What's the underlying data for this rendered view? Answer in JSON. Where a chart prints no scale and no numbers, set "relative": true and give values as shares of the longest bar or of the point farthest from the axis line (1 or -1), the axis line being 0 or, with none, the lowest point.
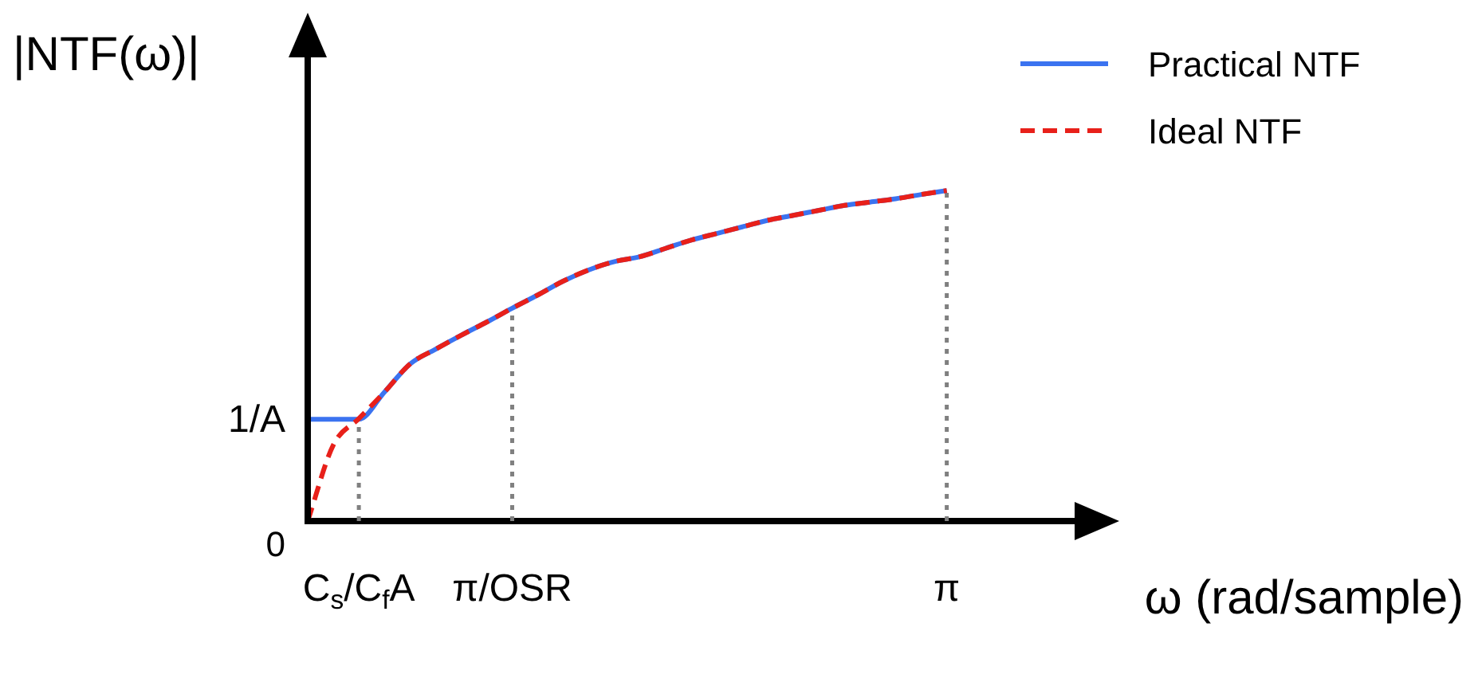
{
  "chart_data": {
    "type": "line",
    "relative": true,
    "ylabel": "|NTF(ω)|",
    "xlabel": "ω (rad/sample)",
    "legend": "top right",
    "categories": [
      null,
      null,
      "C$_{s}$/C$_{f}$A",
      null,
      null,
      null,
      null,
      null,
      "π/OSR",
      null,
      null,
      null,
      null,
      null,
      null,
      null,
      null,
      null,
      null,
      null,
      null,
      null,
      null,
      null,
      null,
      "π",
      null,
      null,
      null,
      null,
      null,
      null
    ],
    "annotations": [
      "1/A",
      "0"
    ],
    "ref_lines": [
      {
        "axis": "x",
        "value": "C$_{s}$/C$_{f}$A",
        "color": "#808080",
        "line_style": "dotted"
      },
      {
        "axis": "x",
        "value": "π/OSR",
        "color": "#808080",
        "line_style": "dotted"
      },
      {
        "axis": "x",
        "value": "π",
        "color": "#808080",
        "line_style": "dotted"
      }
    ],
    "series": [
      {
        "name": "Practical NTF",
        "color": "#3b73f0",
        "line_style": "solid",
        "values": [
          0.308,
          0.308,
          0.308,
          0.39,
          0.475,
          0.52,
          0.562,
          0.602,
          0.644,
          0.684,
          0.726,
          0.76,
          0.785,
          0.8,
          0.825,
          0.85,
          0.87,
          0.89,
          0.91,
          0.925,
          0.94,
          0.955,
          0.965,
          0.975,
          0.988,
          1.0,
          null,
          null,
          null,
          null,
          null,
          null
        ]
      },
      {
        "name": "Ideal NTF",
        "color": "#e8201a",
        "line_style": "dashed",
        "values": [
          0,
          0.23,
          0.31,
          0.39,
          0.475,
          0.52,
          0.562,
          0.602,
          0.644,
          0.684,
          0.726,
          0.76,
          0.785,
          0.8,
          0.825,
          0.85,
          0.87,
          0.89,
          0.91,
          0.925,
          0.94,
          0.955,
          0.965,
          0.975,
          0.988,
          1.0,
          null,
          null,
          null,
          null,
          null,
          null
        ]
      }
    ]
  }
}
